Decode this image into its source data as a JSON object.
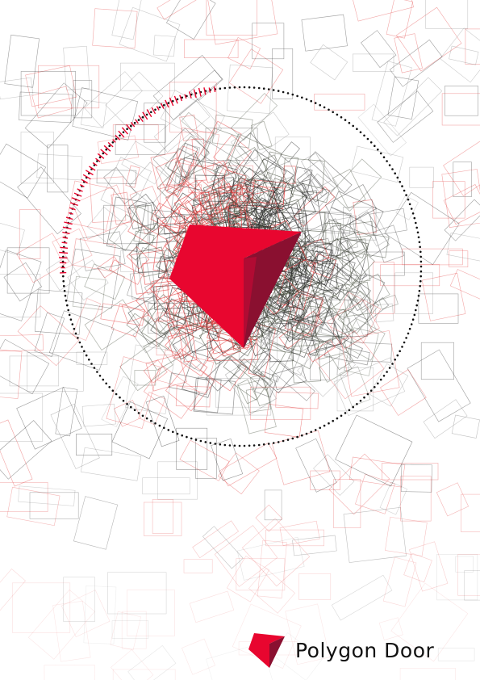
{
  "brand": {
    "name": "Polygon Door",
    "logo_icon": "polygon-door-icon"
  },
  "colors": {
    "background": "#ffffff",
    "accent": "#e8062f",
    "accent_dark": "#8a1030",
    "accent_mid": "#c20a34",
    "line_dark": "#2a2a2a",
    "line_olive": "#4a5240",
    "line_grey": "#8a8a8a",
    "line_red": "#e23a3a",
    "dots": "#111111"
  },
  "artwork": {
    "icon": "polygon-door-icon",
    "pattern": "scattered-rotated-rectangles"
  }
}
